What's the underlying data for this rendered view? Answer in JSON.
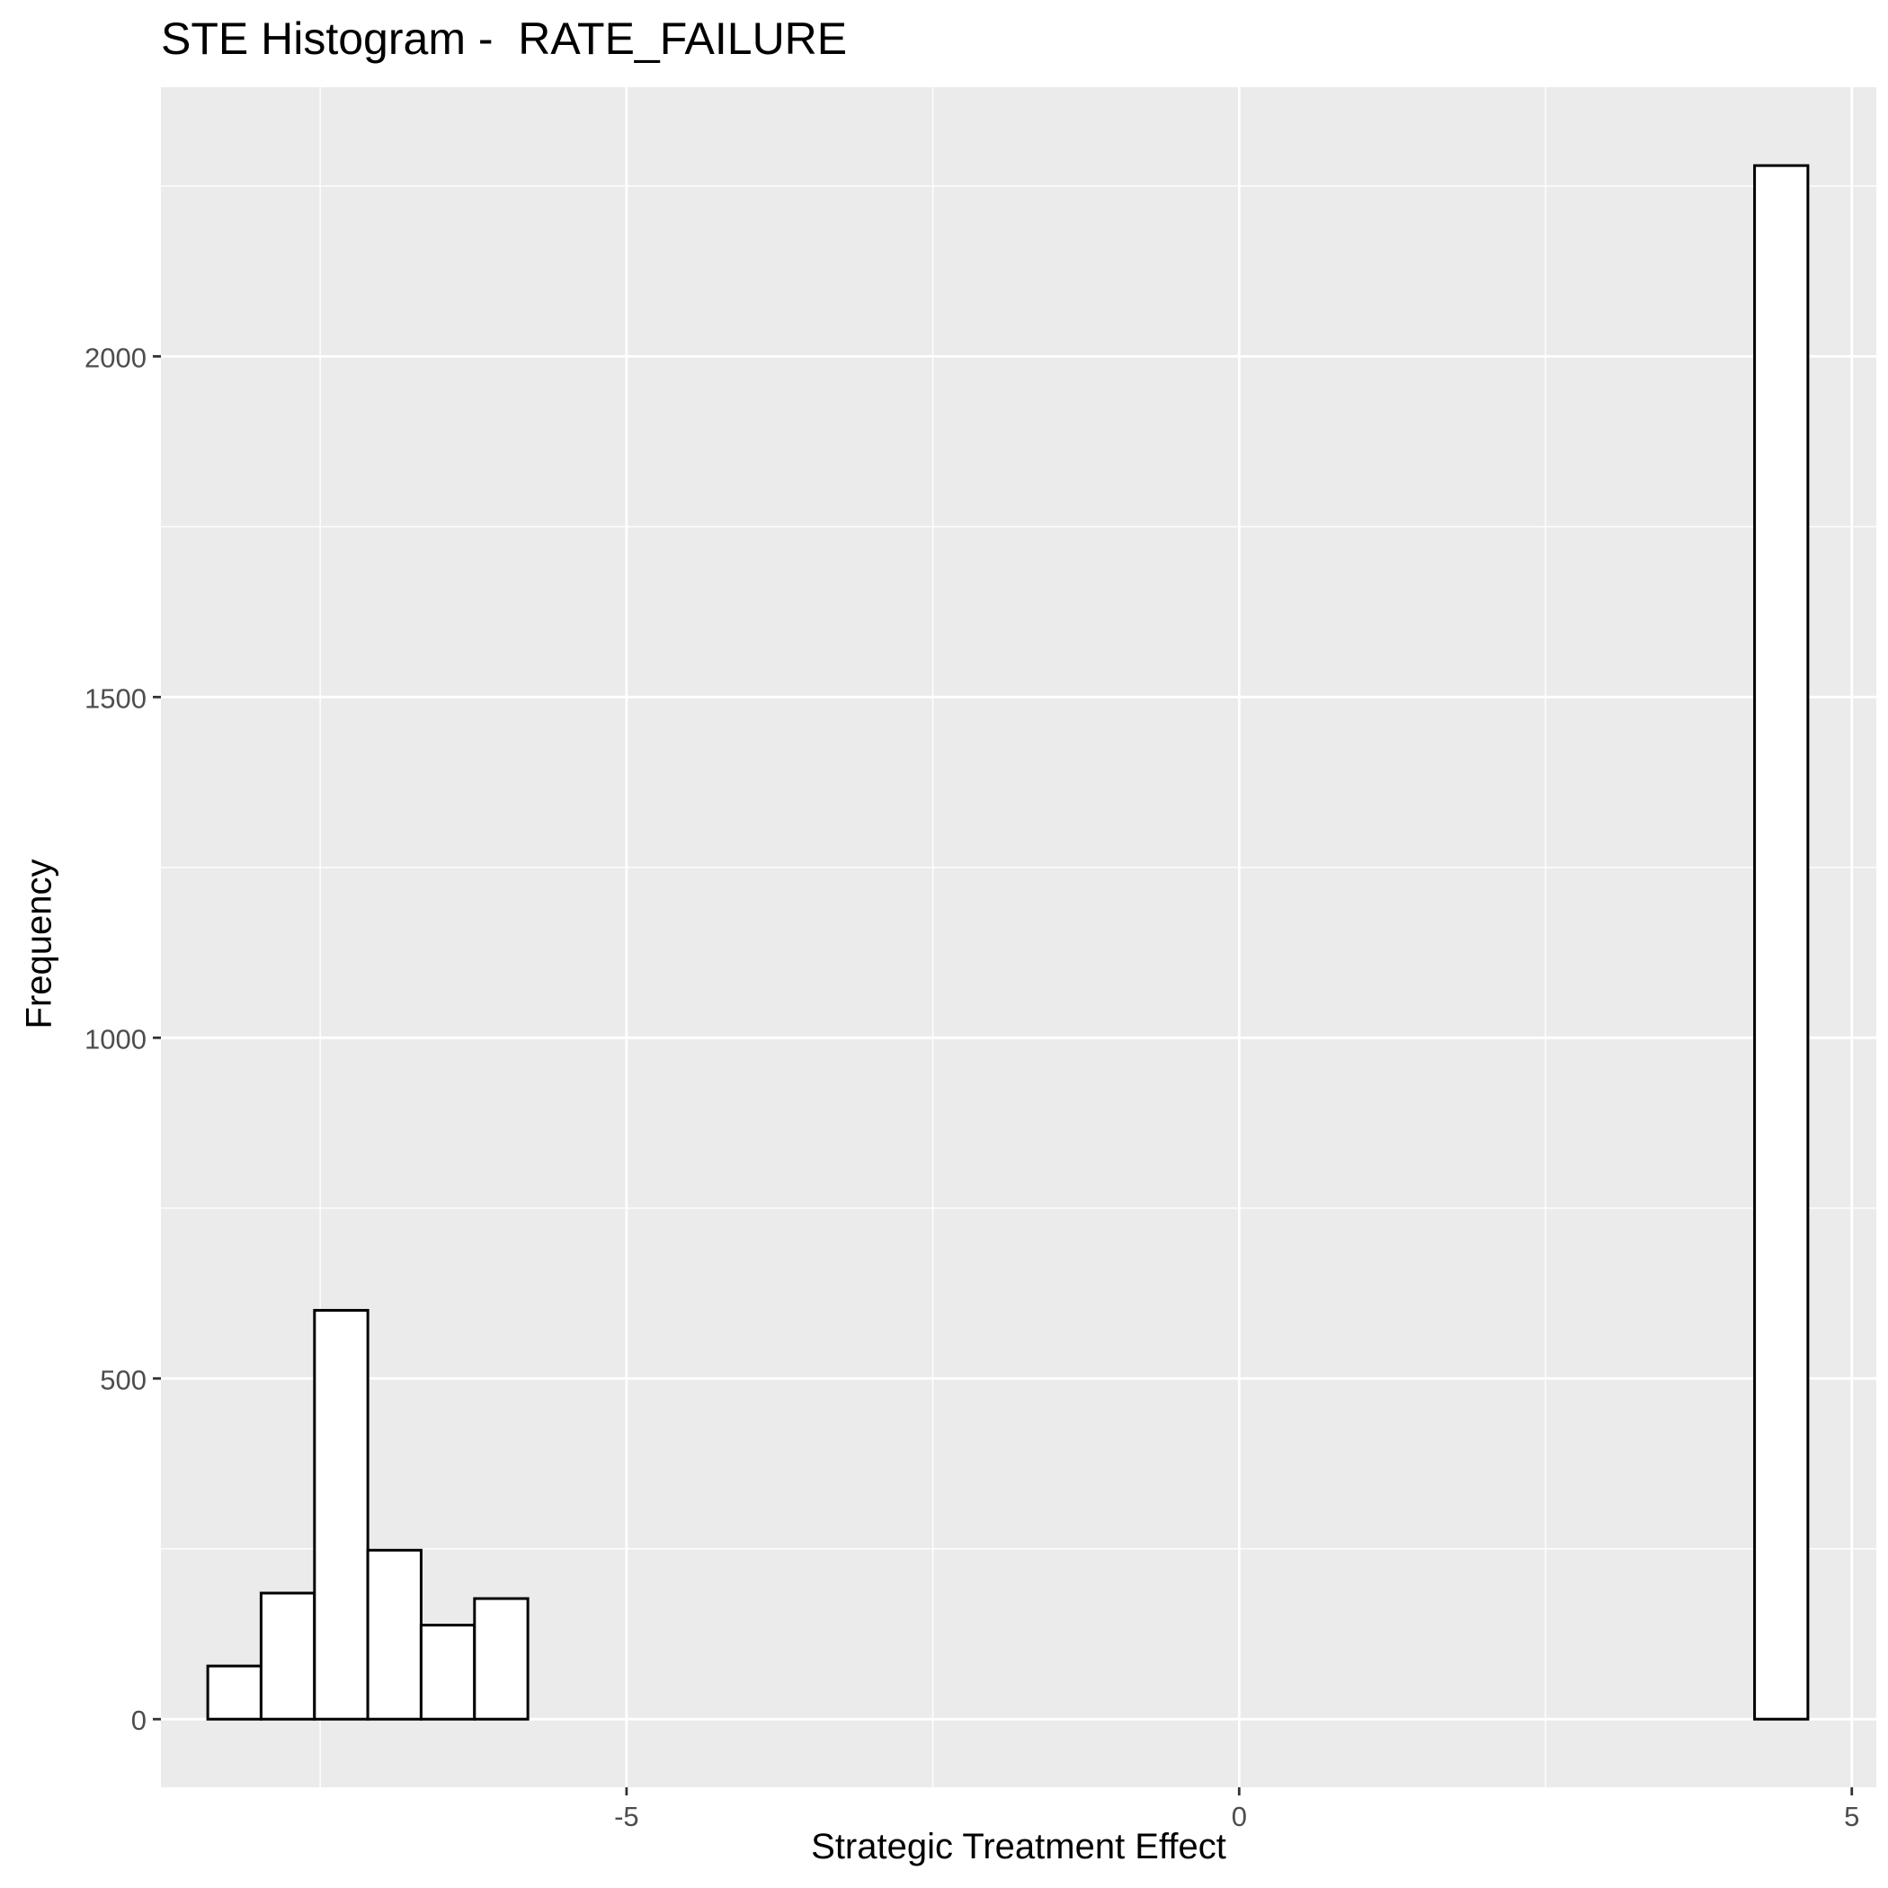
{
  "chart_data": {
    "type": "bar",
    "title": "STE Histogram -  RATE_FAILURE",
    "xlabel": "Strategic Treatment Effect",
    "ylabel": "Frequency",
    "xlim": [
      -8.8,
      5.2
    ],
    "ylim": [
      -100,
      2395
    ],
    "x_ticks": [
      -5,
      0,
      5
    ],
    "y_ticks": [
      0,
      500,
      1000,
      1500,
      2000
    ],
    "grid": true,
    "bin_width": 0.4353,
    "bins": [
      {
        "x": -8.2,
        "count": 78
      },
      {
        "x": -7.765,
        "count": 185
      },
      {
        "x": -7.329,
        "count": 600
      },
      {
        "x": -6.894,
        "count": 248
      },
      {
        "x": -6.459,
        "count": 138
      },
      {
        "x": -6.023,
        "count": 177
      },
      {
        "x": -5.588,
        "count": 0
      },
      {
        "x": -5.153,
        "count": 0
      },
      {
        "x": -4.718,
        "count": 0
      },
      {
        "x": -4.282,
        "count": 0
      },
      {
        "x": -3.847,
        "count": 0
      },
      {
        "x": -3.412,
        "count": 0
      },
      {
        "x": -2.976,
        "count": 0
      },
      {
        "x": -2.541,
        "count": 0
      },
      {
        "x": -2.106,
        "count": 0
      },
      {
        "x": -1.671,
        "count": 0
      },
      {
        "x": -1.235,
        "count": 0
      },
      {
        "x": -0.8,
        "count": 0
      },
      {
        "x": -0.365,
        "count": 0
      },
      {
        "x": 0.071,
        "count": 0
      },
      {
        "x": 0.506,
        "count": 0
      },
      {
        "x": 0.941,
        "count": 0
      },
      {
        "x": 1.376,
        "count": 0
      },
      {
        "x": 1.812,
        "count": 0
      },
      {
        "x": 2.247,
        "count": 0
      },
      {
        "x": 2.682,
        "count": 0
      },
      {
        "x": 3.118,
        "count": 0
      },
      {
        "x": 3.553,
        "count": 0
      },
      {
        "x": 3.988,
        "count": 0
      },
      {
        "x": 4.424,
        "count": 2280
      }
    ],
    "colors": {
      "panel": "#EBEBEB",
      "grid": "#FFFFFF",
      "bar_fill": "#FFFFFF",
      "bar_stroke": "#000000",
      "tick_text": "#4D4D4D"
    }
  }
}
